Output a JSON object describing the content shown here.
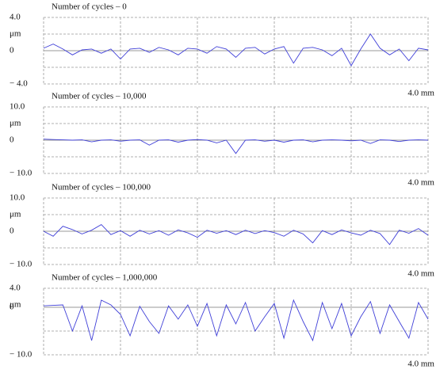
{
  "chart_data": [
    {
      "type": "line",
      "title": "Number of cycles – 0",
      "y_unit": "μm",
      "color": "#4040d8",
      "xlim": [
        0,
        4
      ],
      "ylim": [
        -4,
        4
      ],
      "yticks": [
        {
          "value": 4,
          "label": "4.0"
        },
        0,
        {
          "value": -4,
          "label": "− 4.0"
        }
      ],
      "xticks": [
        {
          "value": 4,
          "label": "4.0 mm"
        }
      ],
      "xgrid": [
        0,
        0.8,
        1.6,
        2.4,
        3.2,
        4
      ],
      "ygrid": [
        -4,
        -2,
        0,
        2,
        4
      ],
      "x": [
        0,
        0.1,
        0.2,
        0.3,
        0.4,
        0.5,
        0.6,
        0.7,
        0.8,
        0.9,
        1,
        1.1,
        1.2,
        1.3,
        1.4,
        1.5,
        1.6,
        1.7,
        1.8,
        1.9,
        2,
        2.1,
        2.2,
        2.3,
        2.4,
        2.5,
        2.6,
        2.7,
        2.8,
        2.9,
        3,
        3.1,
        3.2,
        3.3,
        3.4,
        3.5,
        3.6,
        3.7,
        3.8,
        3.9,
        4
      ],
      "values": [
        0.3,
        0.8,
        0.2,
        -0.5,
        0.1,
        0.2,
        -0.3,
        0.2,
        -1.0,
        0.2,
        0.3,
        -0.2,
        0.4,
        0.1,
        -0.5,
        0.3,
        0.2,
        -0.3,
        0.5,
        0.2,
        -0.8,
        0.3,
        0.4,
        -0.4,
        0.2,
        0.5,
        -1.5,
        0.3,
        0.4,
        0.1,
        -0.6,
        0.3,
        -1.8,
        0.2,
        2.0,
        0.3,
        -0.5,
        0.2,
        -1.2,
        0.3,
        0.1
      ]
    },
    {
      "type": "line",
      "title": "Number of cycles – 10,000",
      "y_unit": "μm",
      "color": "#4040d8",
      "xlim": [
        0,
        4
      ],
      "ylim": [
        -10,
        10
      ],
      "yticks": [
        {
          "value": 10,
          "label": "10.0"
        },
        0,
        {
          "value": -10,
          "label": "− 10.0"
        }
      ],
      "xticks": [
        {
          "value": 4,
          "label": "4.0 mm"
        }
      ],
      "xgrid": [
        0,
        0.8,
        1.6,
        2.4,
        3.2,
        4
      ],
      "ygrid": [
        -10,
        -5,
        0,
        5,
        10
      ],
      "x": [
        0,
        0.1,
        0.2,
        0.3,
        0.4,
        0.5,
        0.6,
        0.7,
        0.8,
        0.9,
        1,
        1.1,
        1.2,
        1.3,
        1.4,
        1.5,
        1.6,
        1.7,
        1.8,
        1.9,
        2,
        2.1,
        2.2,
        2.3,
        2.4,
        2.5,
        2.6,
        2.7,
        2.8,
        2.9,
        3,
        3.1,
        3.2,
        3.3,
        3.4,
        3.5,
        3.6,
        3.7,
        3.8,
        3.9,
        4
      ],
      "values": [
        0.3,
        0.2,
        0.1,
        0.0,
        0.1,
        -0.5,
        0.0,
        0.1,
        -0.3,
        0.0,
        0.1,
        -1.5,
        0.0,
        0.1,
        -0.6,
        0.0,
        0.2,
        0.0,
        -0.8,
        0.0,
        -4.0,
        0.0,
        0.1,
        -0.3,
        0.0,
        -0.6,
        0.0,
        0.1,
        -0.5,
        0.0,
        0.1,
        0.0,
        -0.2,
        0.0,
        -1.0,
        0.1,
        0.0,
        -0.4,
        0.0,
        0.1,
        0.0
      ]
    },
    {
      "type": "line",
      "title": "Number of cycles – 100,000",
      "y_unit": "μm",
      "color": "#4040d8",
      "xlim": [
        0,
        4
      ],
      "ylim": [
        -10,
        10
      ],
      "yticks": [
        {
          "value": 10,
          "label": "10.0"
        },
        0,
        {
          "value": -10,
          "label": "− 10.0"
        }
      ],
      "xticks": [
        {
          "value": 4,
          "label": "4.0 mm"
        }
      ],
      "xgrid": [
        0,
        0.8,
        1.6,
        2.4,
        3.2,
        4
      ],
      "ygrid": [
        -10,
        -5,
        0,
        5,
        10
      ],
      "x": [
        0,
        0.1,
        0.2,
        0.3,
        0.4,
        0.5,
        0.6,
        0.7,
        0.8,
        0.9,
        1,
        1.1,
        1.2,
        1.3,
        1.4,
        1.5,
        1.6,
        1.7,
        1.8,
        1.9,
        2,
        2.1,
        2.2,
        2.3,
        2.4,
        2.5,
        2.6,
        2.7,
        2.8,
        2.9,
        3,
        3.1,
        3.2,
        3.3,
        3.4,
        3.5,
        3.6,
        3.7,
        3.8,
        3.9,
        4
      ],
      "values": [
        0.0,
        -1.5,
        1.5,
        0.5,
        -0.8,
        0.3,
        2.0,
        -1.0,
        0.2,
        -1.5,
        0.3,
        -0.8,
        0.2,
        -1.2,
        0.4,
        -0.5,
        -1.8,
        0.3,
        -0.6,
        0.2,
        -1.0,
        0.3,
        -0.7,
        0.2,
        -0.4,
        -1.5,
        0.3,
        -0.8,
        -3.5,
        0.2,
        -1.0,
        0.4,
        -0.5,
        -1.2,
        0.3,
        -0.7,
        -4.0,
        0.3,
        -0.6,
        0.8,
        -1.2
      ]
    },
    {
      "type": "line",
      "title": "Number of cycles – 1,000,000",
      "y_unit": "μm",
      "color": "#4040d8",
      "xlim": [
        0,
        4
      ],
      "ylim": [
        -10,
        4
      ],
      "yticks": [
        {
          "value": 4,
          "label": "4.0"
        },
        0,
        {
          "value": -10,
          "label": "− 10.0"
        }
      ],
      "xticks": [
        {
          "value": 4,
          "label": "4.0 mm"
        }
      ],
      "xgrid": [
        0,
        0.8,
        1.6,
        2.4,
        3.2,
        4
      ],
      "ygrid": [
        -10,
        -5,
        0,
        4
      ],
      "x": [
        0,
        0.1,
        0.2,
        0.3,
        0.4,
        0.5,
        0.6,
        0.7,
        0.8,
        0.9,
        1,
        1.1,
        1.2,
        1.3,
        1.4,
        1.5,
        1.6,
        1.7,
        1.8,
        1.9,
        2,
        2.1,
        2.2,
        2.3,
        2.4,
        2.5,
        2.6,
        2.7,
        2.8,
        2.9,
        3,
        3.1,
        3.2,
        3.3,
        3.4,
        3.5,
        3.6,
        3.7,
        3.8,
        3.9,
        4
      ],
      "values": [
        0.3,
        0.4,
        0.5,
        -5.0,
        0.3,
        -7.0,
        1.5,
        0.5,
        -1.5,
        -6.0,
        0.2,
        -3.0,
        -5.5,
        0.3,
        -2.5,
        0.5,
        -4.0,
        0.8,
        -6.0,
        0.5,
        -3.5,
        1.0,
        -5.0,
        -2.0,
        0.8,
        -6.5,
        1.5,
        -3.0,
        -7.0,
        1.0,
        -4.5,
        0.8,
        -6.0,
        -2.0,
        1.2,
        -5.5,
        0.5,
        -3.0,
        -6.5,
        1.0,
        -2.5
      ]
    }
  ]
}
